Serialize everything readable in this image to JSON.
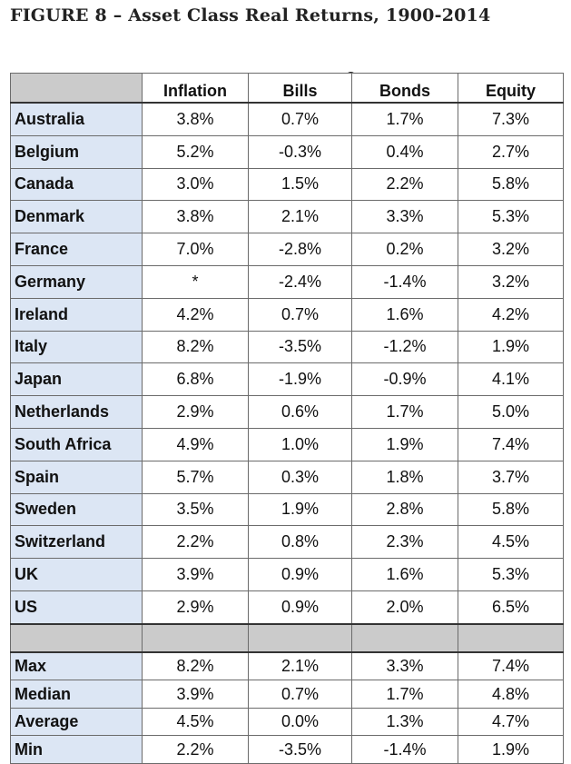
{
  "title": "FIGURE 8 – Asset Class Real Returns, 1900-2014",
  "icon": "zoom-in-icon",
  "table": {
    "headers": [
      "",
      "Inflation",
      "Bills",
      "Bonds",
      "Equity"
    ],
    "rows": [
      {
        "country": "Australia",
        "values": [
          "3.8%",
          "0.7%",
          "1.7%",
          "7.3%"
        ]
      },
      {
        "country": "Belgium",
        "values": [
          "5.2%",
          "-0.3%",
          "0.4%",
          "2.7%"
        ]
      },
      {
        "country": "Canada",
        "values": [
          "3.0%",
          "1.5%",
          "2.2%",
          "5.8%"
        ]
      },
      {
        "country": "Denmark",
        "values": [
          "3.8%",
          "2.1%",
          "3.3%",
          "5.3%"
        ]
      },
      {
        "country": "France",
        "values": [
          "7.0%",
          "-2.8%",
          "0.2%",
          "3.2%"
        ]
      },
      {
        "country": "Germany",
        "values": [
          "*",
          "-2.4%",
          "-1.4%",
          "3.2%"
        ]
      },
      {
        "country": "Ireland",
        "values": [
          "4.2%",
          "0.7%",
          "1.6%",
          "4.2%"
        ]
      },
      {
        "country": "Italy",
        "values": [
          "8.2%",
          "-3.5%",
          "-1.2%",
          "1.9%"
        ]
      },
      {
        "country": "Japan",
        "values": [
          "6.8%",
          "-1.9%",
          "-0.9%",
          "4.1%"
        ]
      },
      {
        "country": "Netherlands",
        "values": [
          "2.9%",
          "0.6%",
          "1.7%",
          "5.0%"
        ]
      },
      {
        "country": "South Africa",
        "values": [
          "4.9%",
          "1.0%",
          "1.9%",
          "7.4%"
        ]
      },
      {
        "country": "Spain",
        "values": [
          "5.7%",
          "0.3%",
          "1.8%",
          "3.7%"
        ]
      },
      {
        "country": "Sweden",
        "values": [
          "3.5%",
          "1.9%",
          "2.8%",
          "5.8%"
        ]
      },
      {
        "country": "Switzerland",
        "values": [
          "2.2%",
          "0.8%",
          "2.3%",
          "4.5%"
        ]
      },
      {
        "country": "UK",
        "values": [
          "3.9%",
          "0.9%",
          "1.6%",
          "5.3%"
        ]
      },
      {
        "country": "US",
        "values": [
          "2.9%",
          "0.9%",
          "2.0%",
          "6.5%"
        ]
      }
    ],
    "stats": [
      {
        "label": "Max",
        "values": [
          "8.2%",
          "2.1%",
          "3.3%",
          "7.4%"
        ]
      },
      {
        "label": "Median",
        "values": [
          "3.9%",
          "0.7%",
          "1.7%",
          "4.8%"
        ]
      },
      {
        "label": "Average",
        "values": [
          "4.5%",
          "0.0%",
          "1.3%",
          "4.7%"
        ]
      },
      {
        "label": "Min",
        "values": [
          "2.2%",
          "-3.5%",
          "-1.4%",
          "1.9%"
        ]
      }
    ]
  }
}
